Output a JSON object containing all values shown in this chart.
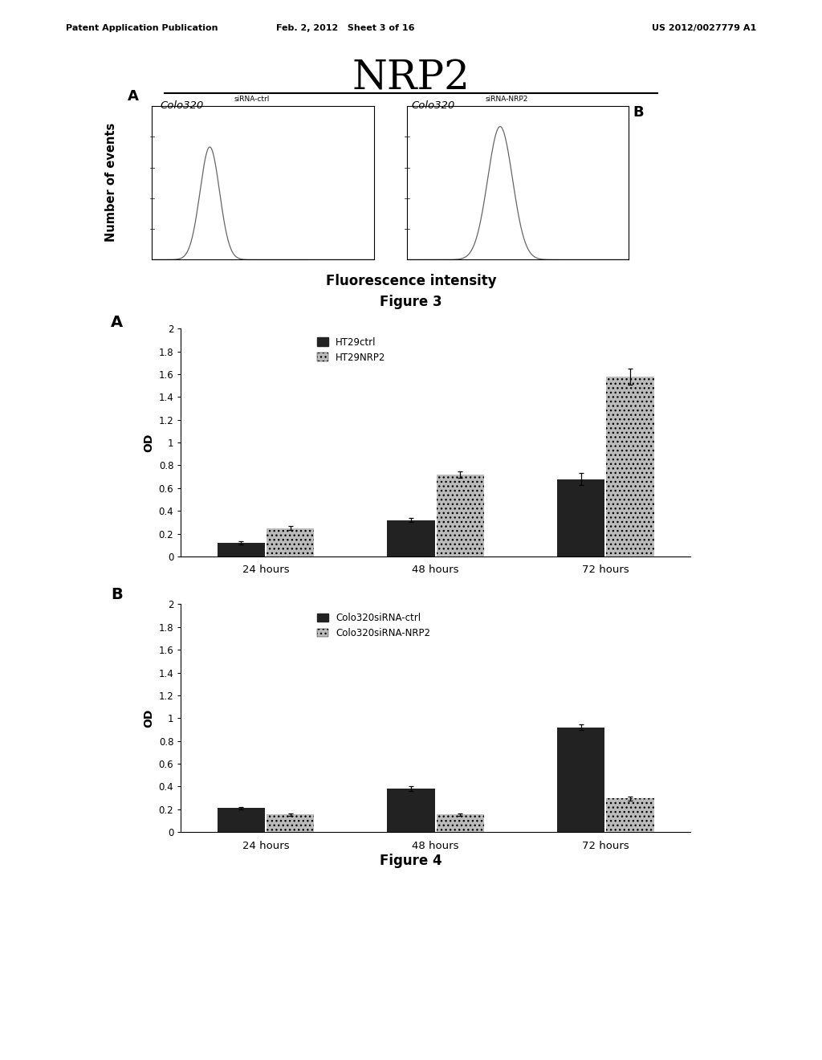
{
  "page_header_left": "Patent Application Publication",
  "page_header_mid": "Feb. 2, 2012   Sheet 3 of 16",
  "page_header_right": "US 2012/0027779 A1",
  "nrp2_title": "NRP2",
  "fig3_xlabel": "Fluorescence intensity",
  "fig3_ylabel": "Number of events",
  "fig3_label_A": "A",
  "fig3_label_B": "B",
  "fig3_caption": "Figure 3",
  "fig4_caption": "Figure 4",
  "fig4A_label": "A",
  "fig4B_label": "B",
  "fig4A_ylabel": "OD",
  "fig4B_ylabel": "OD",
  "fig4_categories": [
    "24 hours",
    "48 hours",
    "72 hours"
  ],
  "fig4A_series1_label": "HT29ctrl",
  "fig4A_series1_color": "#222222",
  "fig4A_series1_values": [
    0.12,
    0.32,
    0.68
  ],
  "fig4A_series1_errors": [
    0.015,
    0.02,
    0.05
  ],
  "fig4A_series2_label": "HT29NRP2",
  "fig4A_series2_color": "#bbbbbb",
  "fig4A_series2_values": [
    0.25,
    0.72,
    1.58
  ],
  "fig4A_series2_errors": [
    0.02,
    0.03,
    0.07
  ],
  "fig4A_ylim": [
    0,
    2
  ],
  "fig4A_yticks": [
    0,
    0.2,
    0.4,
    0.6,
    0.8,
    1.0,
    1.2,
    1.4,
    1.6,
    1.8,
    2.0
  ],
  "fig4A_ytick_labels": [
    "0",
    "0.2",
    "0.4",
    "0.6",
    "0.8",
    "1",
    "1.2",
    "1.4",
    "1.6",
    "1.8",
    "2"
  ],
  "fig4B_series1_label": "Colo320siRNA-ctrl",
  "fig4B_series1_color": "#222222",
  "fig4B_series1_values": [
    0.21,
    0.38,
    0.92
  ],
  "fig4B_series1_errors": [
    0.01,
    0.02,
    0.025
  ],
  "fig4B_series2_label": "Colo320siRNA-NRP2",
  "fig4B_series2_color": "#bbbbbb",
  "fig4B_series2_values": [
    0.155,
    0.155,
    0.295
  ],
  "fig4B_series2_errors": [
    0.01,
    0.01,
    0.02
  ],
  "fig4B_ylim": [
    0,
    2
  ],
  "fig4B_yticks": [
    0,
    0.2,
    0.4,
    0.6,
    0.8,
    1.0,
    1.2,
    1.4,
    1.6,
    1.8,
    2.0
  ],
  "fig4B_ytick_labels": [
    "0",
    "0.2",
    "0.4",
    "0.6",
    "0.8",
    "1",
    "1.2",
    "1.4",
    "1.6",
    "1.8",
    "2"
  ],
  "bg_color": "#ffffff",
  "text_color": "#000000"
}
